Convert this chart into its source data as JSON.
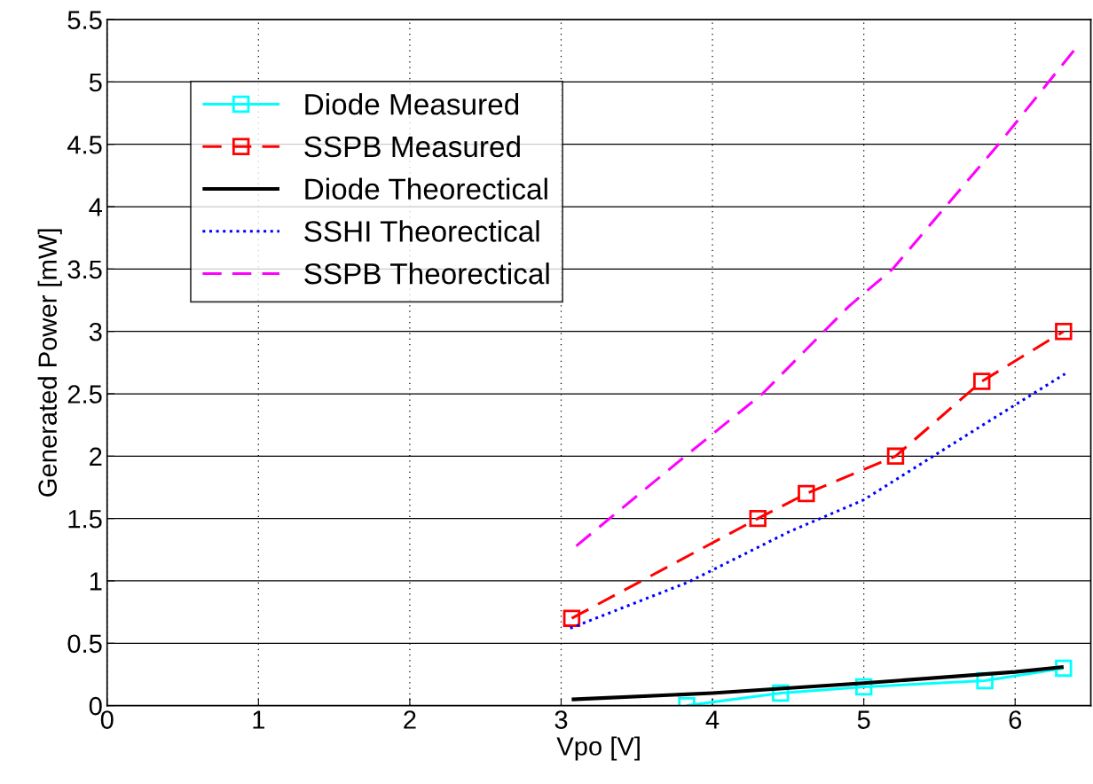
{
  "chart_data": {
    "type": "line",
    "xlabel": "Vpo [V]",
    "ylabel": "Generated Power [mW]",
    "xlim": [
      0,
      6.5
    ],
    "xticks": [
      0,
      1,
      2,
      3,
      4,
      5,
      6
    ],
    "ylim": [
      0,
      5.5
    ],
    "yticks": [
      0,
      0.5,
      1,
      1.5,
      2,
      2.5,
      3,
      3.5,
      4,
      4.5,
      5,
      5.5
    ],
    "grid": true,
    "legend": "top left",
    "series": [
      {
        "name": "Diode Measured",
        "color": "#00ffff",
        "marker": "square",
        "line_style": "solid",
        "x": [
          3.83,
          4.45,
          5.0,
          5.8,
          6.32
        ],
        "values": [
          0,
          0.1,
          0.15,
          0.2,
          0.3
        ]
      },
      {
        "name": "SSPB Measured",
        "color": "#ff0000",
        "marker": "square",
        "line_style": "dashed",
        "x": [
          3.07,
          4.3,
          4.62,
          5.21,
          5.78,
          6.32
        ],
        "values": [
          0.7,
          1.5,
          1.7,
          2.0,
          2.6,
          3.0
        ]
      },
      {
        "name": "Diode Theorectical",
        "color": "#000000",
        "marker": "none",
        "line_style": "solid",
        "x": [
          3.07,
          4.0,
          5.0,
          6.0,
          6.32
        ],
        "values": [
          0.05,
          0.1,
          0.18,
          0.27,
          0.31
        ]
      },
      {
        "name": "SSHI Theorectical",
        "color": "#0000ff",
        "marker": "none",
        "line_style": "dotted",
        "x": [
          3.06,
          3.84,
          4.5,
          5.0,
          5.8,
          6.33
        ],
        "values": [
          0.62,
          0.99,
          1.39,
          1.65,
          2.26,
          2.66
        ]
      },
      {
        "name": "SSPB Theorectical",
        "color": "#ff00ff",
        "marker": "none",
        "line_style": "dashed",
        "x": [
          3.1,
          3.81,
          4.33,
          4.9,
          5.19,
          5.89,
          6.4
        ],
        "values": [
          1.28,
          1.99,
          2.5,
          3.2,
          3.5,
          4.5,
          5.27
        ]
      }
    ]
  }
}
